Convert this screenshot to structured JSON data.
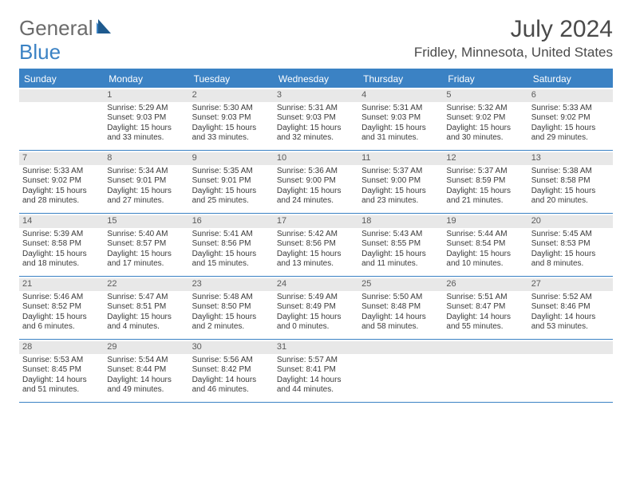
{
  "brand": {
    "part1": "General",
    "part2": "Blue"
  },
  "title": "July 2024",
  "location": "Fridley, Minnesota, United States",
  "colors": {
    "accent": "#3b82c4",
    "header_bg": "#3b82c4",
    "daynum_bg": "#e8e8e8",
    "text": "#3a3a3a",
    "title_text": "#4a4a4a"
  },
  "dayHeaders": [
    "Sunday",
    "Monday",
    "Tuesday",
    "Wednesday",
    "Thursday",
    "Friday",
    "Saturday"
  ],
  "weeks": [
    [
      {
        "n": "",
        "sr": "",
        "ss": "",
        "dl": ""
      },
      {
        "n": "1",
        "sr": "5:29 AM",
        "ss": "9:03 PM",
        "dl": "15 hours and 33 minutes."
      },
      {
        "n": "2",
        "sr": "5:30 AM",
        "ss": "9:03 PM",
        "dl": "15 hours and 33 minutes."
      },
      {
        "n": "3",
        "sr": "5:31 AM",
        "ss": "9:03 PM",
        "dl": "15 hours and 32 minutes."
      },
      {
        "n": "4",
        "sr": "5:31 AM",
        "ss": "9:03 PM",
        "dl": "15 hours and 31 minutes."
      },
      {
        "n": "5",
        "sr": "5:32 AM",
        "ss": "9:02 PM",
        "dl": "15 hours and 30 minutes."
      },
      {
        "n": "6",
        "sr": "5:33 AM",
        "ss": "9:02 PM",
        "dl": "15 hours and 29 minutes."
      }
    ],
    [
      {
        "n": "7",
        "sr": "5:33 AM",
        "ss": "9:02 PM",
        "dl": "15 hours and 28 minutes."
      },
      {
        "n": "8",
        "sr": "5:34 AM",
        "ss": "9:01 PM",
        "dl": "15 hours and 27 minutes."
      },
      {
        "n": "9",
        "sr": "5:35 AM",
        "ss": "9:01 PM",
        "dl": "15 hours and 25 minutes."
      },
      {
        "n": "10",
        "sr": "5:36 AM",
        "ss": "9:00 PM",
        "dl": "15 hours and 24 minutes."
      },
      {
        "n": "11",
        "sr": "5:37 AM",
        "ss": "9:00 PM",
        "dl": "15 hours and 23 minutes."
      },
      {
        "n": "12",
        "sr": "5:37 AM",
        "ss": "8:59 PM",
        "dl": "15 hours and 21 minutes."
      },
      {
        "n": "13",
        "sr": "5:38 AM",
        "ss": "8:58 PM",
        "dl": "15 hours and 20 minutes."
      }
    ],
    [
      {
        "n": "14",
        "sr": "5:39 AM",
        "ss": "8:58 PM",
        "dl": "15 hours and 18 minutes."
      },
      {
        "n": "15",
        "sr": "5:40 AM",
        "ss": "8:57 PM",
        "dl": "15 hours and 17 minutes."
      },
      {
        "n": "16",
        "sr": "5:41 AM",
        "ss": "8:56 PM",
        "dl": "15 hours and 15 minutes."
      },
      {
        "n": "17",
        "sr": "5:42 AM",
        "ss": "8:56 PM",
        "dl": "15 hours and 13 minutes."
      },
      {
        "n": "18",
        "sr": "5:43 AM",
        "ss": "8:55 PM",
        "dl": "15 hours and 11 minutes."
      },
      {
        "n": "19",
        "sr": "5:44 AM",
        "ss": "8:54 PM",
        "dl": "15 hours and 10 minutes."
      },
      {
        "n": "20",
        "sr": "5:45 AM",
        "ss": "8:53 PM",
        "dl": "15 hours and 8 minutes."
      }
    ],
    [
      {
        "n": "21",
        "sr": "5:46 AM",
        "ss": "8:52 PM",
        "dl": "15 hours and 6 minutes."
      },
      {
        "n": "22",
        "sr": "5:47 AM",
        "ss": "8:51 PM",
        "dl": "15 hours and 4 minutes."
      },
      {
        "n": "23",
        "sr": "5:48 AM",
        "ss": "8:50 PM",
        "dl": "15 hours and 2 minutes."
      },
      {
        "n": "24",
        "sr": "5:49 AM",
        "ss": "8:49 PM",
        "dl": "15 hours and 0 minutes."
      },
      {
        "n": "25",
        "sr": "5:50 AM",
        "ss": "8:48 PM",
        "dl": "14 hours and 58 minutes."
      },
      {
        "n": "26",
        "sr": "5:51 AM",
        "ss": "8:47 PM",
        "dl": "14 hours and 55 minutes."
      },
      {
        "n": "27",
        "sr": "5:52 AM",
        "ss": "8:46 PM",
        "dl": "14 hours and 53 minutes."
      }
    ],
    [
      {
        "n": "28",
        "sr": "5:53 AM",
        "ss": "8:45 PM",
        "dl": "14 hours and 51 minutes."
      },
      {
        "n": "29",
        "sr": "5:54 AM",
        "ss": "8:44 PM",
        "dl": "14 hours and 49 minutes."
      },
      {
        "n": "30",
        "sr": "5:56 AM",
        "ss": "8:42 PM",
        "dl": "14 hours and 46 minutes."
      },
      {
        "n": "31",
        "sr": "5:57 AM",
        "ss": "8:41 PM",
        "dl": "14 hours and 44 minutes."
      },
      {
        "n": "",
        "sr": "",
        "ss": "",
        "dl": ""
      },
      {
        "n": "",
        "sr": "",
        "ss": "",
        "dl": ""
      },
      {
        "n": "",
        "sr": "",
        "ss": "",
        "dl": ""
      }
    ]
  ],
  "labels": {
    "sunrise": "Sunrise:",
    "sunset": "Sunset:",
    "daylight": "Daylight:"
  }
}
